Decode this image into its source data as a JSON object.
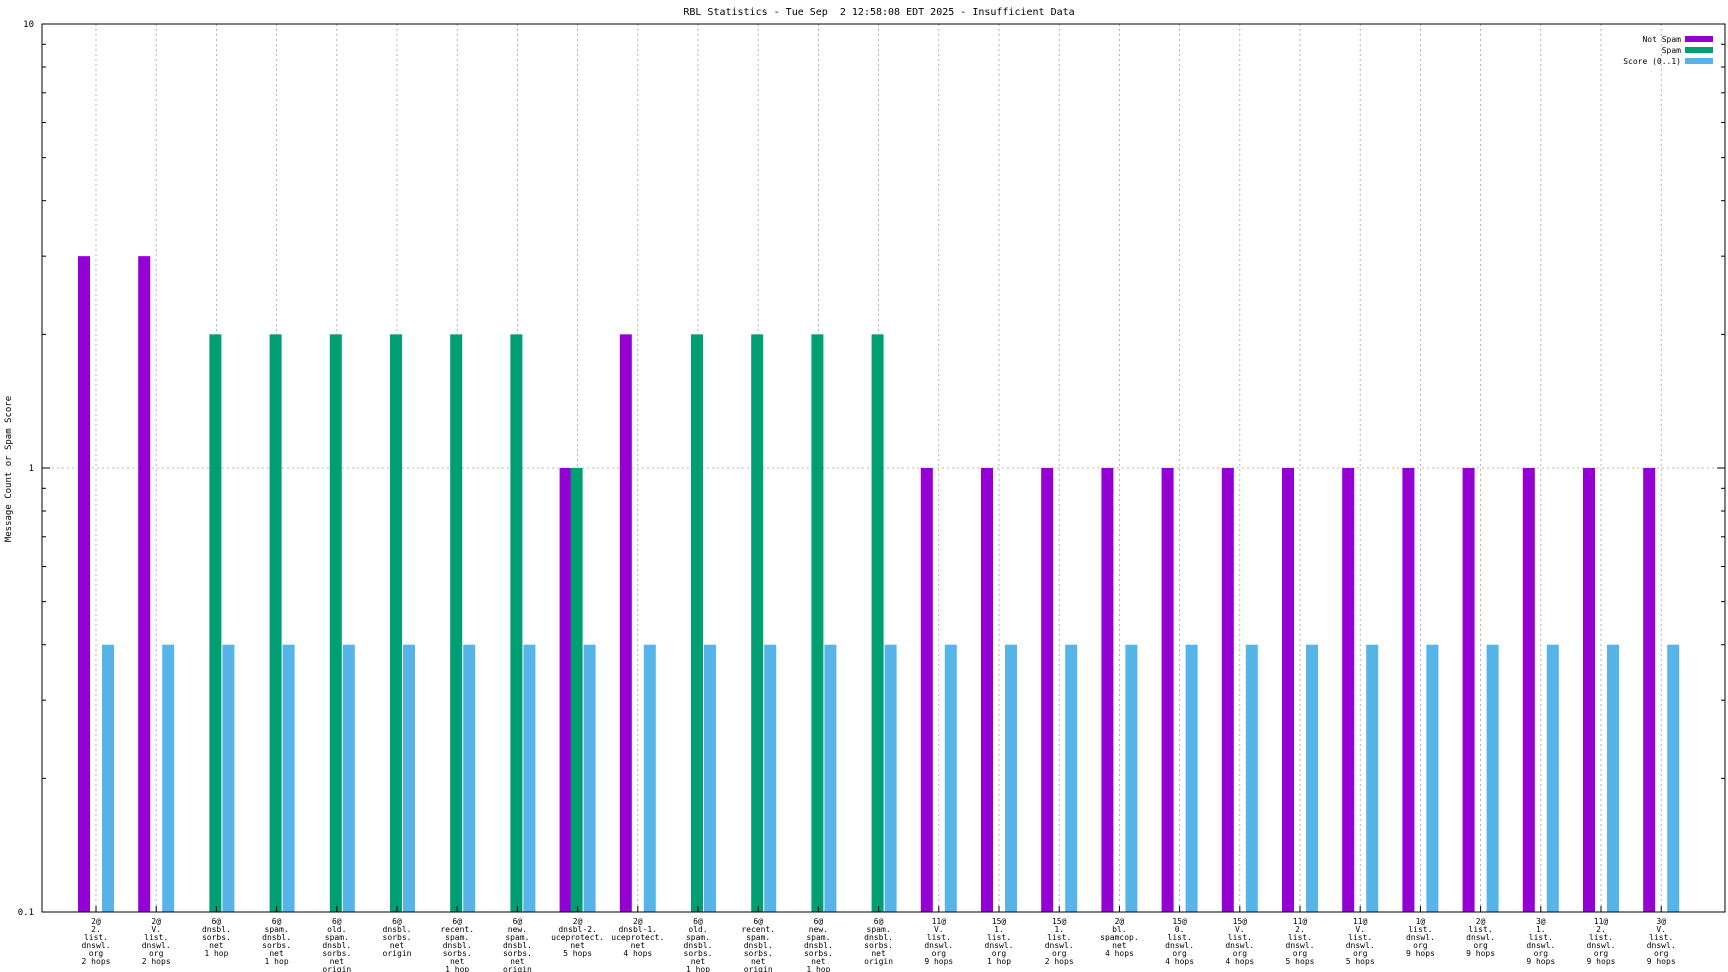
{
  "chart_data": {
    "type": "bar",
    "title": "RBL Statistics - Tue Sep  2 12:58:08 EDT 2025 - Insufficient Data",
    "ylabel": "Message Count or Spam Score",
    "xlabel": "",
    "yscale": "log",
    "ylim": [
      0.1,
      10
    ],
    "yticks": [
      "0.1",
      "1",
      "10"
    ],
    "grid": true,
    "legend_position": "top-right",
    "categories": [
      [
        "2@",
        "2.",
        "list.",
        "dnswl.",
        "org",
        "2 hops"
      ],
      [
        "2@",
        "V.",
        "list.",
        "dnswl.",
        "org",
        "2 hops"
      ],
      [
        "6@",
        "dnsbl.",
        "sorbs.",
        "net",
        "1 hop"
      ],
      [
        "6@",
        "spam.",
        "dnsbl.",
        "sorbs.",
        "net",
        "1 hop"
      ],
      [
        "6@",
        "old.",
        "spam.",
        "dnsbl.",
        "sorbs.",
        "net",
        "origin"
      ],
      [
        "6@",
        "dnsbl.",
        "sorbs.",
        "net",
        "origin"
      ],
      [
        "6@",
        "recent.",
        "spam.",
        "dnsbl.",
        "sorbs.",
        "net",
        "1 hop"
      ],
      [
        "6@",
        "new.",
        "spam.",
        "dnsbl.",
        "sorbs.",
        "net",
        "origin"
      ],
      [
        "2@",
        "dnsbl-2.",
        "uceprotect.",
        "net",
        "5 hops"
      ],
      [
        "2@",
        "dnsbl-1.",
        "uceprotect.",
        "net",
        "4 hops"
      ],
      [
        "6@",
        "old.",
        "spam.",
        "dnsbl.",
        "sorbs.",
        "net",
        "1 hop"
      ],
      [
        "6@",
        "recent.",
        "spam.",
        "dnsbl.",
        "sorbs.",
        "net",
        "origin"
      ],
      [
        "6@",
        "new.",
        "spam.",
        "dnsbl.",
        "sorbs.",
        "net",
        "1 hop"
      ],
      [
        "6@",
        "spam.",
        "dnsbl.",
        "sorbs.",
        "net",
        "origin"
      ],
      [
        "11@",
        "V.",
        "list.",
        "dnswl.",
        "org",
        "9 hops"
      ],
      [
        "15@",
        "1.",
        "list.",
        "dnswl.",
        "org",
        "1 hop"
      ],
      [
        "15@",
        "1.",
        "list.",
        "dnswl.",
        "org",
        "2 hops"
      ],
      [
        "2@",
        "bl.",
        "spamcop.",
        "net",
        "4 hops"
      ],
      [
        "15@",
        "0.",
        "list.",
        "dnswl.",
        "org",
        "4 hops"
      ],
      [
        "15@",
        "V.",
        "list.",
        "dnswl.",
        "org",
        "4 hops"
      ],
      [
        "11@",
        "2.",
        "list.",
        "dnswl.",
        "org",
        "5 hops"
      ],
      [
        "11@",
        "V.",
        "list.",
        "dnswl.",
        "org",
        "5 hops"
      ],
      [
        "1@",
        "list.",
        "dnswl.",
        "org",
        "9 hops"
      ],
      [
        "2@",
        "list.",
        "dnswl.",
        "org",
        "9 hops"
      ],
      [
        "3@",
        "1.",
        "list.",
        "dnswl.",
        "org",
        "9 hops"
      ],
      [
        "11@",
        "2.",
        "list.",
        "dnswl.",
        "org",
        "9 hops"
      ],
      [
        "3@",
        "V.",
        "list.",
        "dnswl.",
        "org",
        "9 hops"
      ]
    ],
    "series": [
      {
        "name": "Not Spam",
        "color": "#9400d3",
        "values": [
          3,
          3,
          null,
          null,
          null,
          null,
          null,
          null,
          1,
          2,
          null,
          null,
          null,
          null,
          1,
          1,
          1,
          1,
          1,
          1,
          1,
          1,
          1,
          1,
          1,
          1,
          1
        ]
      },
      {
        "name": "Spam",
        "color": "#009e73",
        "values": [
          null,
          null,
          2,
          2,
          2,
          2,
          2,
          2,
          1,
          null,
          2,
          2,
          2,
          2,
          null,
          null,
          null,
          null,
          null,
          null,
          null,
          null,
          null,
          null,
          null,
          null,
          null
        ]
      },
      {
        "name": "Score (0..1)",
        "color": "#56b4e9",
        "values": [
          0.4,
          0.4,
          0.4,
          0.4,
          0.4,
          0.4,
          0.4,
          0.4,
          0.4,
          0.4,
          0.4,
          0.4,
          0.4,
          0.4,
          0.4,
          0.4,
          0.4,
          0.4,
          0.4,
          0.4,
          0.4,
          0.4,
          0.4,
          0.4,
          0.4,
          0.4,
          0.4
        ]
      }
    ]
  }
}
